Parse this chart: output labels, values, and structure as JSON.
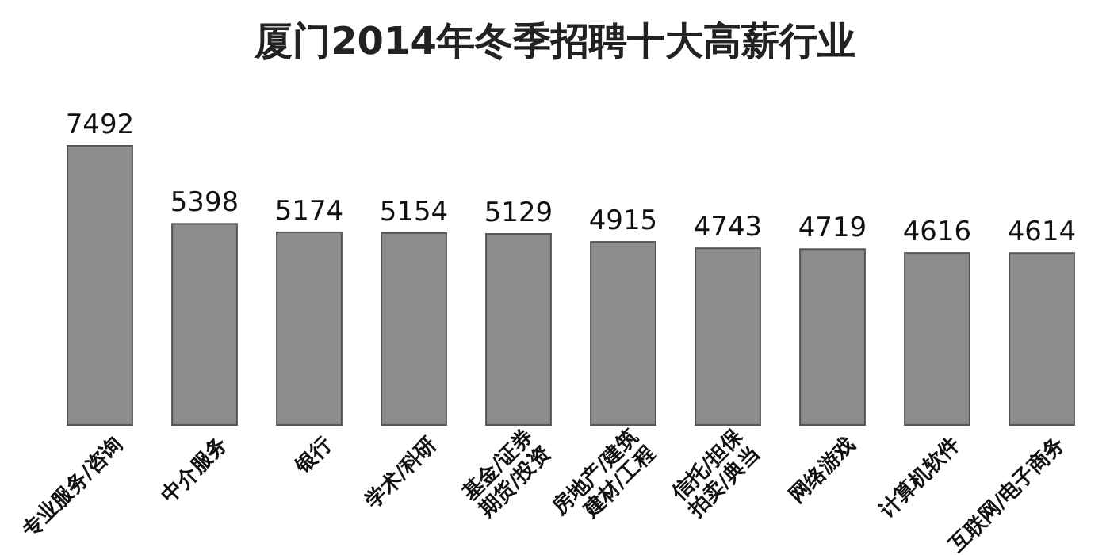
{
  "chart_data": {
    "type": "bar",
    "title": "厦门2014年冬季招聘十大高薪行业",
    "categories": [
      "专业服务/咨询",
      "中介服务",
      "银行",
      "学术/科研",
      "基金/证券\n期货/投资",
      "房地产/建筑\n建材/工程",
      "信托/担保\n拍卖/典当",
      "网络游戏",
      "计算机软件",
      "互联网/电子商务"
    ],
    "values": [
      7492,
      5398,
      5174,
      5154,
      5129,
      4915,
      4743,
      4719,
      4616,
      4614
    ],
    "color": "#8c8c8c",
    "data_labels": true
  }
}
